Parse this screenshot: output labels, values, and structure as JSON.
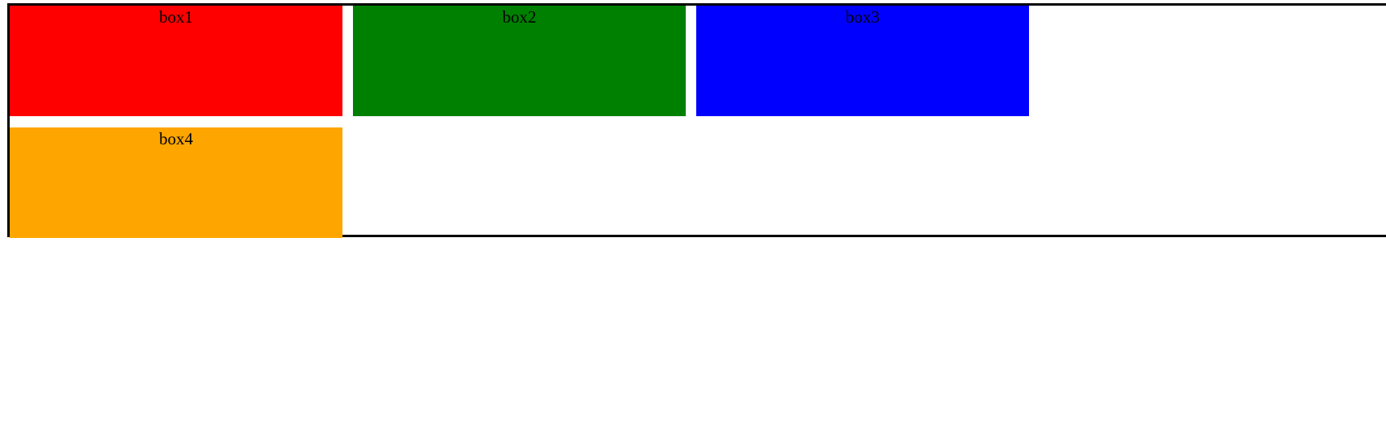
{
  "boxes": [
    {
      "label": "box1",
      "color": "#ff0000"
    },
    {
      "label": "box2",
      "color": "#008000"
    },
    {
      "label": "box3",
      "color": "#0000ff"
    },
    {
      "label": "box4",
      "color": "#ffa500"
    }
  ]
}
